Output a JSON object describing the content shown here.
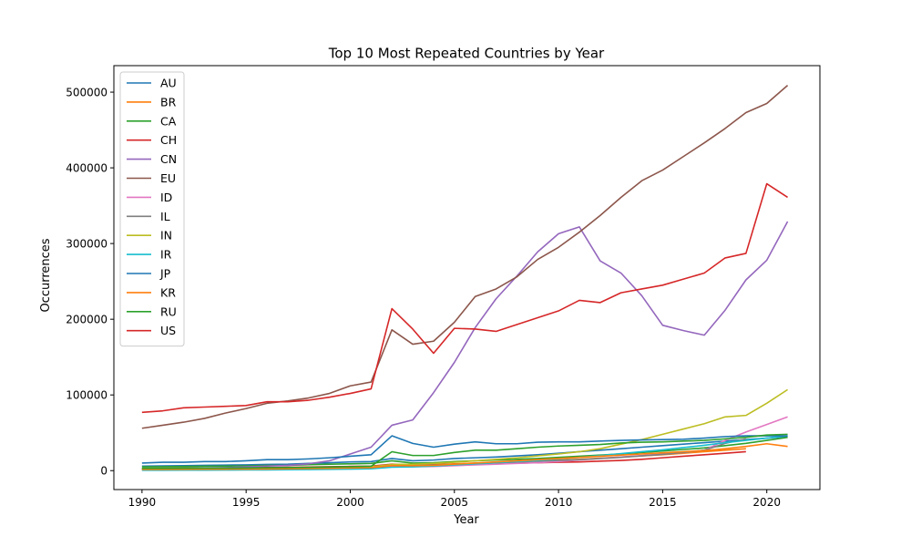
{
  "chart_data": {
    "type": "line",
    "title": "Top 10 Most Repeated Countries by Year",
    "xlabel": "Year",
    "ylabel": "Occurrences",
    "xlim": [
      1988.65,
      2022.55
    ],
    "ylim": [
      -25000,
      535000
    ],
    "xticks": [
      1990,
      1995,
      2000,
      2005,
      2010,
      2015,
      2020
    ],
    "yticks": [
      0,
      100000,
      200000,
      300000,
      400000,
      500000
    ],
    "grid": false,
    "legend_position": "top-left",
    "x": [
      1990,
      1991,
      1992,
      1993,
      1994,
      1995,
      1996,
      1997,
      1998,
      1999,
      2000,
      2001,
      2002,
      2003,
      2004,
      2005,
      2006,
      2007,
      2008,
      2009,
      2010,
      2011,
      2012,
      2013,
      2014,
      2015,
      2016,
      2017,
      2018,
      2019,
      2020,
      2021
    ],
    "series": [
      {
        "name": "AU",
        "color": "#1f77b4",
        "values": [
          6000,
          6200,
          6500,
          7000,
          7300,
          7600,
          8200,
          8500,
          9500,
          10500,
          11500,
          12000,
          16000,
          13000,
          14000,
          16000,
          17000,
          18000,
          19500,
          21000,
          23000,
          25000,
          27000,
          29000,
          31000,
          33000,
          35000,
          37000,
          39000,
          41000,
          43000,
          45000
        ]
      },
      {
        "name": "BR",
        "color": "#ff7f0e",
        "values": [
          2500,
          2600,
          2800,
          3000,
          3200,
          3400,
          3700,
          4000,
          4300,
          4600,
          5000,
          5200,
          8000,
          7500,
          8000,
          9000,
          10000,
          11000,
          12000,
          13000,
          14000,
          15000,
          16500,
          18000,
          19500,
          21000,
          23000,
          25000,
          27000,
          29000,
          null,
          null
        ]
      },
      {
        "name": "CA",
        "color": "#2ca02c",
        "values": [
          5000,
          5200,
          5500,
          5800,
          6000,
          6300,
          6800,
          7000,
          7800,
          8500,
          9000,
          9500,
          13000,
          10000,
          10500,
          12000,
          13000,
          14000,
          15000,
          16000,
          17500,
          19000,
          20500,
          22000,
          24000,
          26000,
          28000,
          30000,
          33000,
          36000,
          40000,
          44000
        ]
      },
      {
        "name": "CH",
        "color": "#d62728",
        "values": [
          3000,
          3100,
          3300,
          3500,
          3700,
          3900,
          4200,
          4500,
          4800,
          5200,
          5600,
          6000,
          8500,
          7500,
          7800,
          8500,
          9000,
          9500,
          10000,
          10500,
          11000,
          11500,
          12500,
          13500,
          15000,
          17000,
          19000,
          21000,
          23000,
          25000,
          null,
          null
        ]
      },
      {
        "name": "CN",
        "color": "#9467bd",
        "values": [
          2000,
          2500,
          3000,
          3500,
          4000,
          5000,
          6000,
          7000,
          9000,
          13000,
          22000,
          31000,
          60000,
          67000,
          103000,
          143000,
          189000,
          227000,
          257000,
          289000,
          313000,
          322000,
          277000,
          261000,
          231000,
          192000,
          185000,
          179000,
          212000,
          252000,
          278000,
          329000
        ]
      },
      {
        "name": "EU",
        "color": "#8c564b",
        "values": [
          56000,
          60000,
          64000,
          69000,
          76000,
          82000,
          89000,
          92000,
          96000,
          102000,
          112000,
          117000,
          186000,
          167000,
          171000,
          196000,
          230000,
          240000,
          256000,
          279000,
          295000,
          315000,
          337000,
          361000,
          383000,
          397000,
          415000,
          433000,
          452000,
          473000,
          485000,
          509000
        ]
      },
      {
        "name": "ID",
        "color": "#e377c2",
        "values": [
          1500,
          1600,
          1700,
          1800,
          1900,
          2000,
          2200,
          2400,
          2600,
          2800,
          3000,
          3300,
          5000,
          5200,
          5500,
          6500,
          7500,
          8500,
          9500,
          10500,
          12000,
          14000,
          16000,
          18000,
          20000,
          22000,
          24000,
          27000,
          40000,
          51000,
          61000,
          71000
        ]
      },
      {
        "name": "IL",
        "color": "#7f7f7f",
        "values": [
          2000,
          2100,
          2300,
          2500,
          2700,
          2900,
          3200,
          3500,
          3900,
          4300,
          4700,
          5000,
          7500,
          7000,
          7500,
          8500,
          9500,
          10500,
          11500,
          12500,
          13500,
          14500,
          16000,
          17500,
          19500,
          21500,
          24000,
          27000,
          36000,
          42000,
          null,
          null
        ]
      },
      {
        "name": "IN",
        "color": "#bcbd22",
        "values": [
          1500,
          1600,
          1700,
          1800,
          2000,
          2200,
          2500,
          2800,
          3200,
          3700,
          4300,
          5000,
          8000,
          8500,
          9500,
          11000,
          13000,
          15000,
          17000,
          19500,
          22000,
          25000,
          29000,
          35000,
          41000,
          48000,
          55000,
          62000,
          71000,
          73000,
          89000,
          107000
        ]
      },
      {
        "name": "IR",
        "color": "#17becf",
        "values": [
          500,
          550,
          600,
          700,
          800,
          900,
          1000,
          1200,
          1400,
          1700,
          2000,
          2500,
          4500,
          5000,
          6000,
          7500,
          9000,
          10500,
          12000,
          13500,
          15500,
          17500,
          20000,
          22500,
          25000,
          27500,
          30500,
          33500,
          37000,
          40000,
          43000,
          46000
        ]
      },
      {
        "name": "JP",
        "color": "#1f77b4",
        "values": [
          10000,
          11000,
          11000,
          12000,
          12000,
          13000,
          14500,
          14500,
          15500,
          17000,
          19000,
          21000,
          46000,
          36000,
          31000,
          35000,
          38000,
          35500,
          35500,
          37500,
          38000,
          38000,
          39000,
          40000,
          40500,
          41000,
          41500,
          43000,
          45000,
          46000,
          46000,
          46000
        ]
      },
      {
        "name": "KR",
        "color": "#ff7f0e",
        "values": [
          1500,
          1600,
          1700,
          1800,
          1900,
          2000,
          2200,
          2400,
          2700,
          3000,
          3500,
          4000,
          6500,
          6500,
          7000,
          8500,
          10000,
          11500,
          13000,
          14500,
          16000,
          17500,
          19000,
          20500,
          22000,
          23500,
          25000,
          26500,
          29000,
          32000,
          35500,
          32000
        ]
      },
      {
        "name": "RU",
        "color": "#2ca02c",
        "values": [
          3000,
          3100,
          3200,
          3300,
          3400,
          3500,
          3800,
          4000,
          4300,
          4700,
          5200,
          5800,
          25000,
          20000,
          20000,
          24000,
          27000,
          27000,
          29000,
          31000,
          32500,
          33500,
          34500,
          36500,
          37500,
          38000,
          39000,
          40000,
          42000,
          44000,
          47000,
          48000
        ]
      },
      {
        "name": "US",
        "color": "#d62728",
        "values": [
          77000,
          79000,
          83000,
          84000,
          85000,
          86000,
          91000,
          91000,
          93000,
          97000,
          102000,
          108000,
          214000,
          187000,
          155000,
          188000,
          187000,
          184000,
          193000,
          202000,
          211000,
          225000,
          222000,
          235000,
          240000,
          245000,
          253000,
          261000,
          281000,
          287000,
          379000,
          361000
        ]
      }
    ]
  }
}
